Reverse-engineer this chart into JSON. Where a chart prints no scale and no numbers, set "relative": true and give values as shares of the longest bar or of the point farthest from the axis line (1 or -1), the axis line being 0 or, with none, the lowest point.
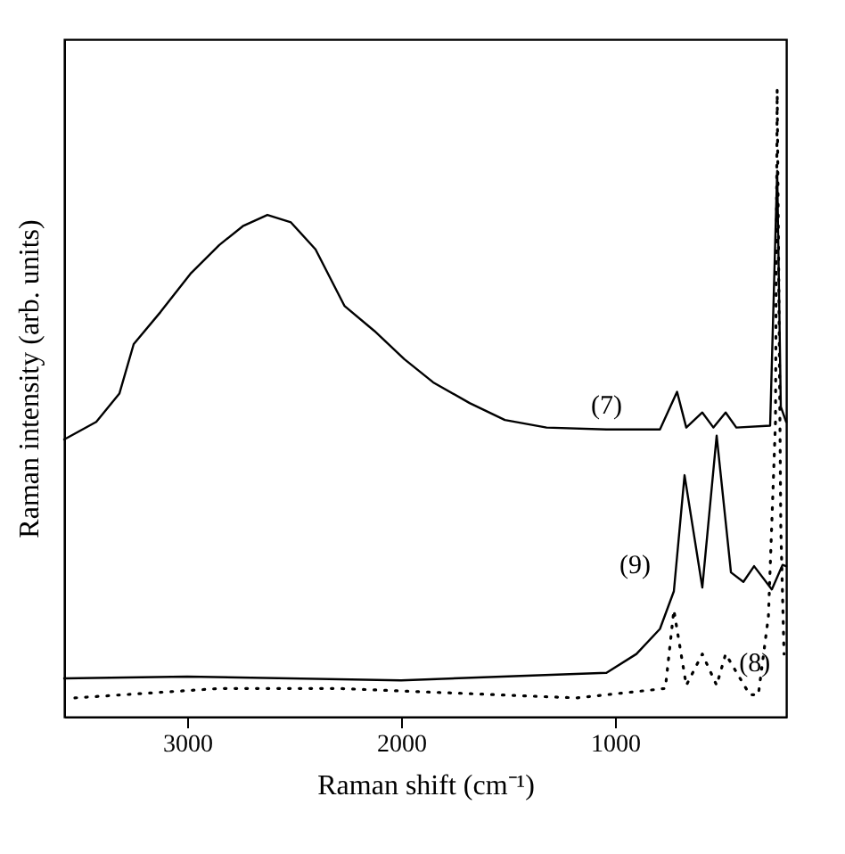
{
  "chart_data": {
    "type": "line",
    "relative": true,
    "xlabel": "Raman shift (cm⁻¹)",
    "ylabel": "Raman intensity (arb. units)",
    "xlim": [
      3575,
      200
    ],
    "xticks": [
      3000,
      2000,
      1000
    ],
    "tick_labels": "x",
    "grid": false,
    "marker": "none",
    "series": [
      {
        "name": "(7)",
        "color": "#000000",
        "line_style": "solid",
        "x": [
          3575,
          3425,
          3317,
          3250,
          3125,
          2985,
          2850,
          2740,
          2625,
          2515,
          2400,
          2265,
          2125,
          1985,
          1850,
          1680,
          1515,
          1320,
          1040,
          790,
          710,
          667,
          592,
          540,
          483,
          433,
          275,
          242,
          225,
          200
        ],
        "values": [
          0.442,
          0.47,
          0.515,
          0.594,
          0.645,
          0.706,
          0.752,
          0.782,
          0.8,
          0.788,
          0.745,
          0.655,
          0.615,
          0.57,
          0.533,
          0.5,
          0.473,
          0.461,
          0.458,
          0.458,
          0.518,
          0.461,
          0.485,
          0.461,
          0.485,
          0.461,
          0.464,
          0.87,
          0.494,
          0.47
        ]
      },
      {
        "name": "(8)",
        "color": "#000000",
        "line_style": "dotted",
        "x": [
          3525,
          2850,
          2290,
          1180,
          765,
          725,
          667,
          592,
          525,
          483,
          370,
          330,
          283,
          250,
          242,
          225,
          210
        ],
        "values": [
          0.03,
          0.045,
          0.045,
          0.03,
          0.045,
          0.17,
          0.05,
          0.1,
          0.05,
          0.1,
          0.035,
          0.035,
          0.16,
          0.47,
          1.0,
          0.3,
          0.1
        ]
      },
      {
        "name": "(9)",
        "color": "#000000",
        "line_style": "solid",
        "x": [
          3575,
          3000,
          2000,
          1040,
          900,
          790,
          725,
          675,
          592,
          525,
          458,
          400,
          350,
          267,
          217,
          200
        ],
        "values": [
          0.061,
          0.064,
          0.058,
          0.07,
          0.1,
          0.14,
          0.2,
          0.385,
          0.206,
          0.448,
          0.23,
          0.215,
          0.24,
          0.203,
          0.242,
          0.24
        ]
      }
    ]
  }
}
